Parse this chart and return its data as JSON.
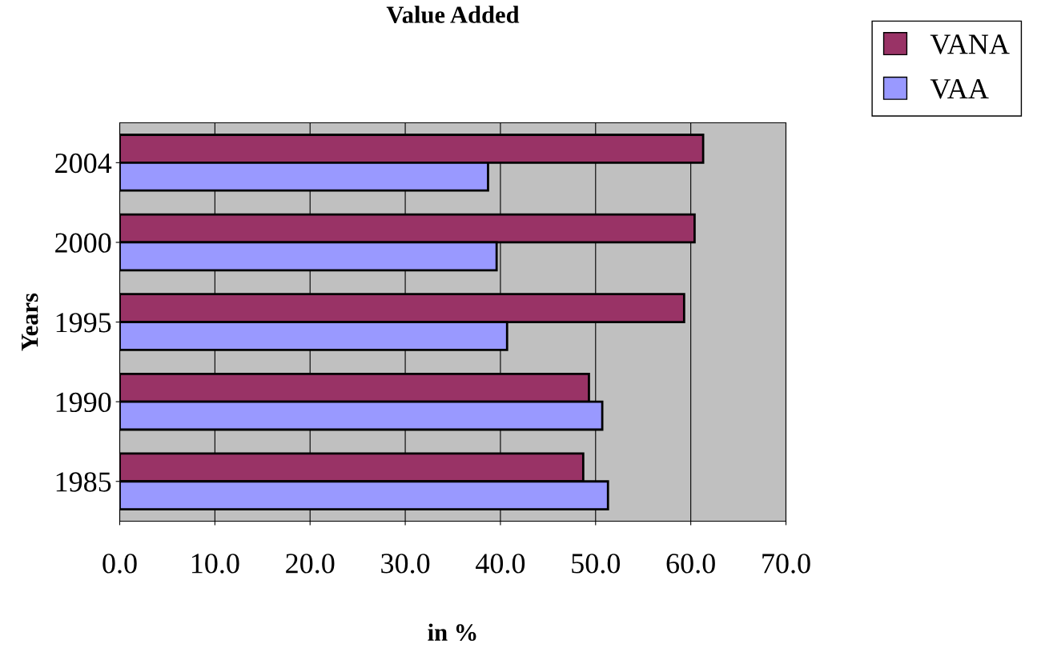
{
  "chart_data": {
    "type": "bar",
    "orientation": "horizontal",
    "title": "Value Added",
    "xlabel": "in %",
    "ylabel": "Years",
    "categories": [
      "2004",
      "2000",
      "1995",
      "1990",
      "1985"
    ],
    "series": [
      {
        "name": "VANA",
        "color": "#993366",
        "values": [
          61.3,
          60.4,
          59.3,
          49.3,
          48.7
        ]
      },
      {
        "name": "VAA",
        "color": "#9999ff",
        "values": [
          38.7,
          39.6,
          40.7,
          50.7,
          51.3
        ]
      }
    ],
    "xlim": [
      0,
      70
    ],
    "xticks": [
      {
        "value": 0,
        "label": "0.0"
      },
      {
        "value": 10,
        "label": "10.0"
      },
      {
        "value": 20,
        "label": "20.0"
      },
      {
        "value": 30,
        "label": "30.0"
      },
      {
        "value": 40,
        "label": "40.0"
      },
      {
        "value": 50,
        "label": "50.0"
      },
      {
        "value": 60,
        "label": "60.0"
      },
      {
        "value": 70,
        "label": "70.0"
      }
    ],
    "grid": "x",
    "legend": "top right"
  }
}
